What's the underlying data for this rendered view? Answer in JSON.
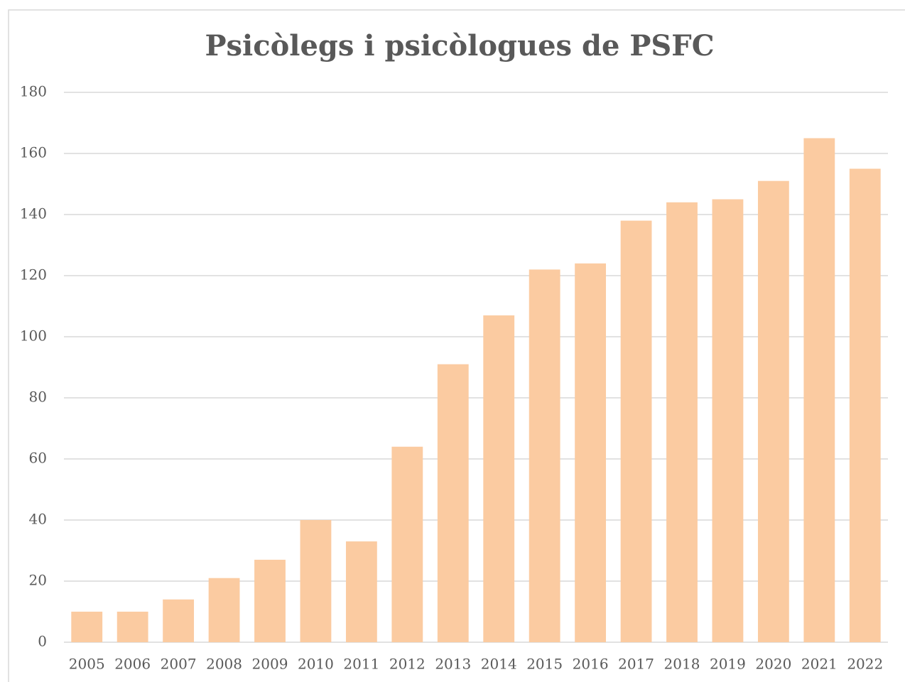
{
  "chart_data": {
    "type": "bar",
    "title": "Psicòlegs i psicòlogues de PSFC",
    "categories": [
      "2005",
      "2006",
      "2007",
      "2008",
      "2009",
      "2010",
      "2011",
      "2012",
      "2013",
      "2014",
      "2015",
      "2016",
      "2017",
      "2018",
      "2019",
      "2020",
      "2021",
      "2022"
    ],
    "values": [
      10,
      10,
      14,
      21,
      27,
      40,
      33,
      64,
      91,
      107,
      122,
      124,
      138,
      144,
      145,
      151,
      165,
      155
    ],
    "color": "#fbcba1",
    "ylim": [
      0,
      180
    ],
    "yticks": [
      0,
      20,
      40,
      60,
      80,
      100,
      120,
      140,
      160,
      180
    ],
    "grid": true
  }
}
